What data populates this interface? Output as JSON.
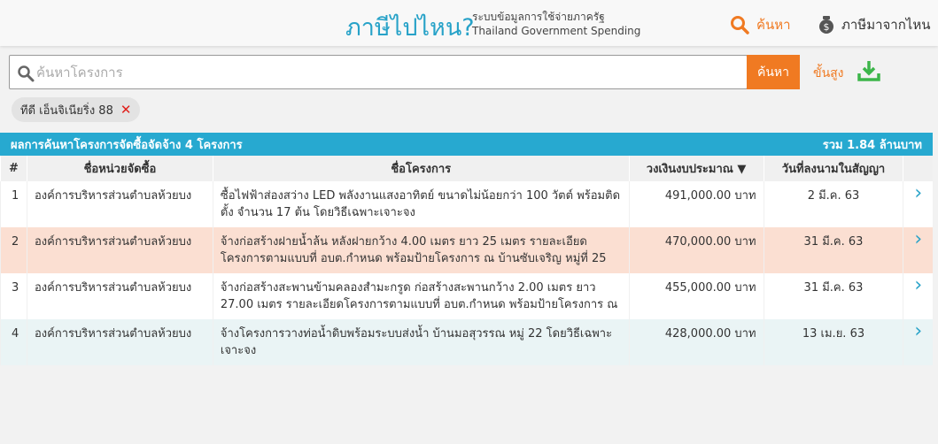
{
  "header": {
    "logo": "ภาษีไปไหน?",
    "subtitle_th": "ระบบข้อมูลการใช้จ่ายภาครัฐ",
    "subtitle_en": "Thailand Government Spending",
    "nav_search": "ค้นหา",
    "nav_tax": "ภาษีมาจากไหน"
  },
  "search": {
    "placeholder": "ค้นหาโครงการ",
    "value": "",
    "button": "ค้นหา",
    "advanced": "ขั้นสูง"
  },
  "filters": [
    {
      "label": "ทีดี เอ็นจิเนียริ่ง 88"
    }
  ],
  "results": {
    "summary": "ผลการค้นหาโครงการจัดซื้อจัดจ้าง 4 โครงการ",
    "total": "รวม 1.84 ล้านบาท",
    "columns": [
      "#",
      "ชื่อหน่วยจัดซื้อ",
      "ชื่อโครงการ",
      "วงเงินงบประมาณ ▼",
      "วันที่ลงนามในสัญญา"
    ],
    "rows": [
      {
        "n": "1",
        "agency": "องค์การบริหารส่วนตำบลห้วยบง",
        "project": "ซื้อไฟฟ้าส่องสว่าง LED พลังงานแสงอาทิตย์ ขนาดไม่น้อยกว่า 100 วัตต์ พร้อมติดตั้ง จำนวน 17 ต้น โดยวิธีเฉพาะเจาะจง",
        "budget": "491,000.00 บาท",
        "date": "2 มี.ค. 63"
      },
      {
        "n": "2",
        "agency": "องค์การบริหารส่วนตำบลห้วยบง",
        "project": "จ้างก่อสร้างฝายน้ำล้น หลังฝายกว้าง 4.00 เมตร ยาว 25 เมตร รายละเอียดโครงการตามแบบที่ อบต.กำหนด พร้อมป้ายโครงการ ณ บ้านซับเจริญ หมู่ที่ 25",
        "budget": "470,000.00 บาท",
        "date": "31 มี.ค. 63"
      },
      {
        "n": "3",
        "agency": "องค์การบริหารส่วนตำบลห้วยบง",
        "project": "จ้างก่อสร้างสะพานข้ามคลองสำมะกรูด ก่อสร้างสะพานกว้าง 2.00 เมตร ยาว 27.00 เมตร รายละเอียดโครงการตามแบบที่ อบต.กำหนด พร้อมป้ายโครงการ ณ",
        "budget": "455,000.00 บาท",
        "date": "31 มี.ค. 63"
      },
      {
        "n": "4",
        "agency": "องค์การบริหารส่วนตำบลห้วยบง",
        "project": "จ้างโครงการวางท่อน้ำดิบพร้อมระบบส่งน้ำ บ้านมอสุวรรณ หมู่ 22 โดยวิธีเฉพาะเจาะจง",
        "budget": "428,000.00 บาท",
        "date": "13 เม.ย. 63"
      }
    ]
  },
  "colors": {
    "brand": "#27a2c8",
    "accent": "#f07a22",
    "highlight_row": "#fbdfd2",
    "alt_row": "#eaf4f5",
    "download": "#3cb54a"
  }
}
